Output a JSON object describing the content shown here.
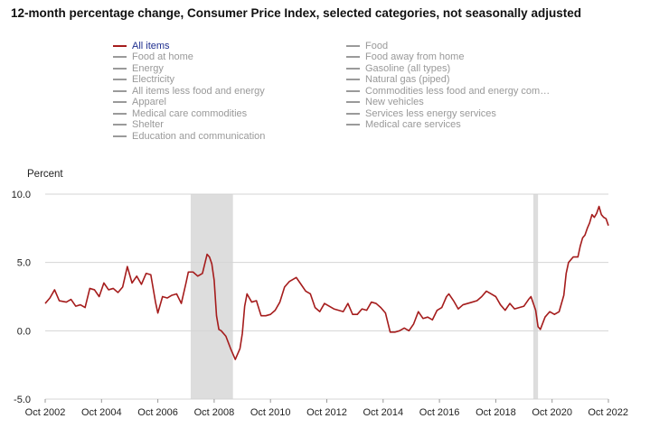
{
  "title": "12-month percentage change, Consumer Price Index, selected categories, not seasonally adjusted",
  "legend": {
    "items": [
      {
        "label": "All items",
        "active": true
      },
      {
        "label": "Food at home",
        "active": false
      },
      {
        "label": "Energy",
        "active": false
      },
      {
        "label": "Electricity",
        "active": false
      },
      {
        "label": "All items less food and energy",
        "active": false
      },
      {
        "label": "Apparel",
        "active": false
      },
      {
        "label": "Medical care commodities",
        "active": false
      },
      {
        "label": "Shelter",
        "active": false
      },
      {
        "label": "Education and communication",
        "active": false
      },
      {
        "label": "Food",
        "active": false
      },
      {
        "label": "Food away from home",
        "active": false
      },
      {
        "label": "Gasoline (all types)",
        "active": false
      },
      {
        "label": "Natural gas (piped)",
        "active": false
      },
      {
        "label": "Commodities less food and energy com…",
        "active": false
      },
      {
        "label": "New vehicles",
        "active": false
      },
      {
        "label": "Services less energy services",
        "active": false
      },
      {
        "label": "Medical care services",
        "active": false
      }
    ]
  },
  "colors": {
    "line": "#a51c1c",
    "recession": "#dddddd",
    "grid": "#d4d4d4",
    "legend_inactive": "#9a9a9a",
    "legend_active_text": "#1f2f8f"
  },
  "chart_data": {
    "type": "line",
    "title": "12-month percentage change, Consumer Price Index, selected categories, not seasonally adjusted",
    "ylabel": "Percent",
    "xlabel": "",
    "ylim": [
      -5.0,
      10.0
    ],
    "yticks": [
      "10.0",
      "5.0",
      "0.0",
      "-5.0"
    ],
    "ytick_values": [
      10,
      5,
      0,
      -5
    ],
    "xticks": [
      "Oct 2002",
      "Oct 2004",
      "Oct 2006",
      "Oct 2008",
      "Oct 2010",
      "Oct 2012",
      "Oct 2014",
      "Oct 2016",
      "Oct 2018",
      "Oct 2020",
      "Oct 2022"
    ],
    "xtick_dates": [
      "2002-10",
      "2004-10",
      "2006-10",
      "2008-10",
      "2010-10",
      "2012-10",
      "2014-10",
      "2016-10",
      "2018-10",
      "2020-10",
      "2022-10"
    ],
    "xlim": [
      "2002-10",
      "2022-10"
    ],
    "grid": true,
    "recessions": [
      {
        "start": "2007-12",
        "end": "2009-06"
      },
      {
        "start": "2020-02",
        "end": "2020-04"
      }
    ],
    "series": [
      {
        "name": "All items",
        "points": [
          [
            "2002-10",
            2.0
          ],
          [
            "2002-12",
            2.4
          ],
          [
            "2003-02",
            3.0
          ],
          [
            "2003-04",
            2.2
          ],
          [
            "2003-07",
            2.1
          ],
          [
            "2003-09",
            2.3
          ],
          [
            "2003-11",
            1.8
          ],
          [
            "2004-01",
            1.9
          ],
          [
            "2004-03",
            1.7
          ],
          [
            "2004-05",
            3.1
          ],
          [
            "2004-07",
            3.0
          ],
          [
            "2004-09",
            2.5
          ],
          [
            "2004-11",
            3.5
          ],
          [
            "2005-01",
            3.0
          ],
          [
            "2005-03",
            3.1
          ],
          [
            "2005-05",
            2.8
          ],
          [
            "2005-07",
            3.2
          ],
          [
            "2005-09",
            4.7
          ],
          [
            "2005-11",
            3.5
          ],
          [
            "2006-01",
            4.0
          ],
          [
            "2006-03",
            3.4
          ],
          [
            "2006-05",
            4.2
          ],
          [
            "2006-07",
            4.1
          ],
          [
            "2006-09",
            2.1
          ],
          [
            "2006-10",
            1.3
          ],
          [
            "2006-12",
            2.5
          ],
          [
            "2007-02",
            2.4
          ],
          [
            "2007-04",
            2.6
          ],
          [
            "2007-06",
            2.7
          ],
          [
            "2007-08",
            2.0
          ],
          [
            "2007-10",
            3.5
          ],
          [
            "2007-11",
            4.3
          ],
          [
            "2008-01",
            4.3
          ],
          [
            "2008-03",
            4.0
          ],
          [
            "2008-05",
            4.2
          ],
          [
            "2008-07",
            5.6
          ],
          [
            "2008-08",
            5.4
          ],
          [
            "2008-09",
            4.9
          ],
          [
            "2008-10",
            3.7
          ],
          [
            "2008-11",
            1.1
          ],
          [
            "2008-12",
            0.1
          ],
          [
            "2009-01",
            0.0
          ],
          [
            "2009-03",
            -0.4
          ],
          [
            "2009-05",
            -1.3
          ],
          [
            "2009-07",
            -2.1
          ],
          [
            "2009-09",
            -1.3
          ],
          [
            "2009-10",
            -0.2
          ],
          [
            "2009-11",
            1.8
          ],
          [
            "2009-12",
            2.7
          ],
          [
            "2010-02",
            2.1
          ],
          [
            "2010-04",
            2.2
          ],
          [
            "2010-06",
            1.1
          ],
          [
            "2010-08",
            1.1
          ],
          [
            "2010-10",
            1.2
          ],
          [
            "2010-12",
            1.5
          ],
          [
            "2011-02",
            2.1
          ],
          [
            "2011-04",
            3.2
          ],
          [
            "2011-06",
            3.6
          ],
          [
            "2011-09",
            3.9
          ],
          [
            "2011-11",
            3.4
          ],
          [
            "2012-01",
            2.9
          ],
          [
            "2012-03",
            2.7
          ],
          [
            "2012-05",
            1.7
          ],
          [
            "2012-07",
            1.4
          ],
          [
            "2012-09",
            2.0
          ],
          [
            "2012-11",
            1.8
          ],
          [
            "2013-01",
            1.6
          ],
          [
            "2013-03",
            1.5
          ],
          [
            "2013-05",
            1.4
          ],
          [
            "2013-07",
            2.0
          ],
          [
            "2013-09",
            1.2
          ],
          [
            "2013-11",
            1.2
          ],
          [
            "2014-01",
            1.6
          ],
          [
            "2014-03",
            1.5
          ],
          [
            "2014-05",
            2.1
          ],
          [
            "2014-07",
            2.0
          ],
          [
            "2014-09",
            1.7
          ],
          [
            "2014-11",
            1.3
          ],
          [
            "2015-01",
            -0.1
          ],
          [
            "2015-03",
            -0.1
          ],
          [
            "2015-05",
            0.0
          ],
          [
            "2015-07",
            0.2
          ],
          [
            "2015-09",
            0.0
          ],
          [
            "2015-11",
            0.5
          ],
          [
            "2016-01",
            1.4
          ],
          [
            "2016-03",
            0.9
          ],
          [
            "2016-05",
            1.0
          ],
          [
            "2016-07",
            0.8
          ],
          [
            "2016-09",
            1.5
          ],
          [
            "2016-11",
            1.7
          ],
          [
            "2017-01",
            2.5
          ],
          [
            "2017-02",
            2.7
          ],
          [
            "2017-04",
            2.2
          ],
          [
            "2017-06",
            1.6
          ],
          [
            "2017-08",
            1.9
          ],
          [
            "2017-10",
            2.0
          ],
          [
            "2017-12",
            2.1
          ],
          [
            "2018-02",
            2.2
          ],
          [
            "2018-04",
            2.5
          ],
          [
            "2018-06",
            2.9
          ],
          [
            "2018-08",
            2.7
          ],
          [
            "2018-10",
            2.5
          ],
          [
            "2018-12",
            1.9
          ],
          [
            "2019-02",
            1.5
          ],
          [
            "2019-04",
            2.0
          ],
          [
            "2019-06",
            1.6
          ],
          [
            "2019-08",
            1.7
          ],
          [
            "2019-10",
            1.8
          ],
          [
            "2019-12",
            2.3
          ],
          [
            "2020-01",
            2.5
          ],
          [
            "2020-03",
            1.5
          ],
          [
            "2020-04",
            0.3
          ],
          [
            "2020-05",
            0.1
          ],
          [
            "2020-07",
            1.0
          ],
          [
            "2020-09",
            1.4
          ],
          [
            "2020-11",
            1.2
          ],
          [
            "2021-01",
            1.4
          ],
          [
            "2021-03",
            2.6
          ],
          [
            "2021-04",
            4.2
          ],
          [
            "2021-05",
            5.0
          ],
          [
            "2021-07",
            5.4
          ],
          [
            "2021-09",
            5.4
          ],
          [
            "2021-10",
            6.2
          ],
          [
            "2021-11",
            6.8
          ],
          [
            "2021-12",
            7.0
          ],
          [
            "2022-01",
            7.5
          ],
          [
            "2022-02",
            7.9
          ],
          [
            "2022-03",
            8.5
          ],
          [
            "2022-04",
            8.3
          ],
          [
            "2022-05",
            8.6
          ],
          [
            "2022-06",
            9.1
          ],
          [
            "2022-07",
            8.5
          ],
          [
            "2022-08",
            8.3
          ],
          [
            "2022-09",
            8.2
          ],
          [
            "2022-10",
            7.7
          ]
        ]
      }
    ]
  }
}
